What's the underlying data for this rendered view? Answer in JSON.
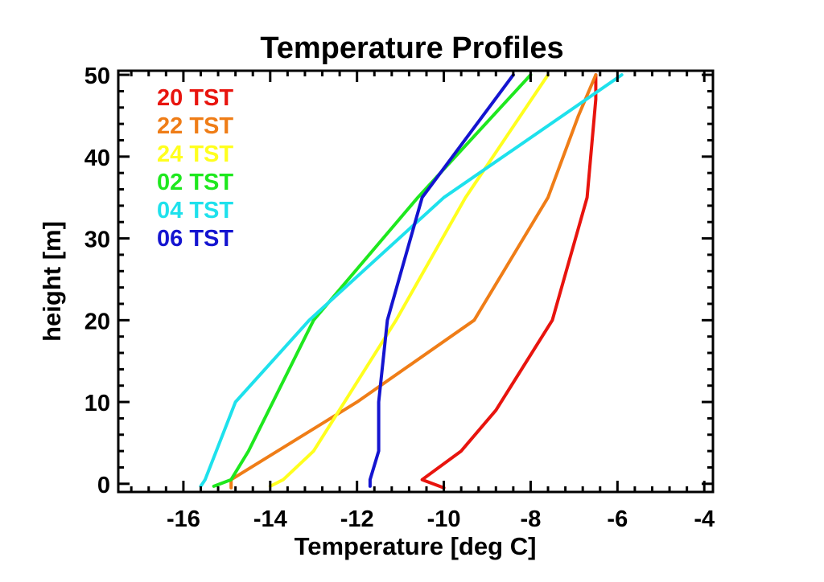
{
  "chart_data": {
    "type": "line",
    "title": "Temperature Profiles",
    "xlabel": "Temperature [deg C]",
    "ylabel": "height [m]",
    "xlim": [
      -17.5,
      -3.8
    ],
    "ylim": [
      -1,
      50.5
    ],
    "xticks": [
      -16,
      -14,
      -12,
      -10,
      -8,
      -6,
      -4
    ],
    "yticks": [
      0,
      10,
      20,
      30,
      40,
      50
    ],
    "x_tick_labels": [
      "-16",
      "-14",
      "-12",
      "-10",
      "-8",
      "-6",
      "-4"
    ],
    "y_tick_labels": [
      "0",
      "10",
      "20",
      "30",
      "40",
      "50"
    ],
    "legend_position": "top-left",
    "grid": false,
    "series": [
      {
        "name": "20 TST",
        "color": "#e8140e",
        "x": [
          -10.0,
          -10.5,
          -9.6,
          -8.8,
          -7.5,
          -6.7,
          -6.5,
          -6.5
        ],
        "y": [
          -0.5,
          0.5,
          4,
          9,
          20,
          35,
          47,
          50
        ]
      },
      {
        "name": "22 TST",
        "color": "#ef7d17",
        "x": [
          -14.9,
          -14.9,
          -12.0,
          -9.3,
          -7.6,
          -6.9,
          -6.5
        ],
        "y": [
          -0.5,
          0.5,
          10,
          20,
          35,
          45,
          50
        ]
      },
      {
        "name": "24 TST",
        "color": "#ffff1e",
        "x": [
          -14.0,
          -13.7,
          -13.0,
          -11.1,
          -9.5,
          -7.6
        ],
        "y": [
          -0.3,
          0.5,
          4,
          20,
          35,
          50
        ]
      },
      {
        "name": "02 TST",
        "color": "#1ee81e",
        "x": [
          -15.3,
          -14.9,
          -14.5,
          -13.0,
          -10.6,
          -8.0
        ],
        "y": [
          -0.3,
          0.5,
          4,
          20,
          35,
          50
        ]
      },
      {
        "name": "04 TST",
        "color": "#1ee1ec",
        "x": [
          -15.6,
          -15.5,
          -14.8,
          -13.1,
          -10.0,
          -5.9
        ],
        "y": [
          -0.3,
          0.5,
          10,
          20,
          35,
          50
        ]
      },
      {
        "name": "06 TST",
        "color": "#1414d0",
        "x": [
          -11.7,
          -11.7,
          -11.5,
          -11.5,
          -11.3,
          -10.5,
          -8.4
        ],
        "y": [
          -0.3,
          0.5,
          4,
          10,
          20,
          35,
          50
        ]
      }
    ]
  }
}
